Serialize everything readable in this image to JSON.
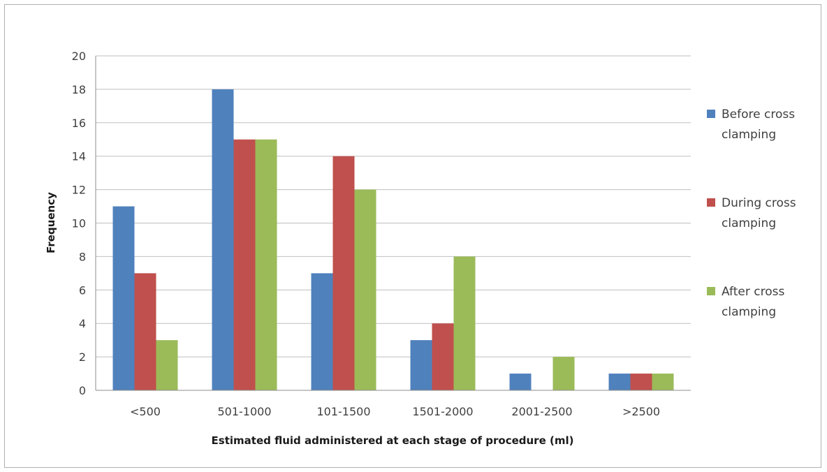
{
  "chart_data": {
    "type": "bar",
    "categories": [
      "<500",
      "501-1000",
      "101-1500",
      "1501-2000",
      "2001-2500",
      ">2500"
    ],
    "series": [
      {
        "name": "Before cross clamping",
        "values": [
          11,
          18,
          7,
          3,
          1,
          1
        ],
        "color": "#4f81bd"
      },
      {
        "name": "During cross clamping",
        "values": [
          7,
          15,
          14,
          4,
          0,
          1
        ],
        "color": "#c0504d"
      },
      {
        "name": "After cross clamping",
        "values": [
          3,
          15,
          12,
          8,
          2,
          1
        ],
        "color": "#9bbb59"
      }
    ],
    "legend_lines": [
      [
        "Before cross",
        "clamping"
      ],
      [
        "During cross",
        "clamping"
      ],
      [
        "After cross",
        "clamping"
      ]
    ],
    "xlabel": "Estimated fluid administered at each stage of procedure (ml)",
    "ylabel": "Frequency",
    "ylim": [
      0,
      20
    ],
    "yticks": [
      0,
      2,
      4,
      6,
      8,
      10,
      12,
      14,
      16,
      18,
      20
    ],
    "grid": true,
    "legend_position": "right",
    "gridline_color": "#bfbfbf"
  }
}
